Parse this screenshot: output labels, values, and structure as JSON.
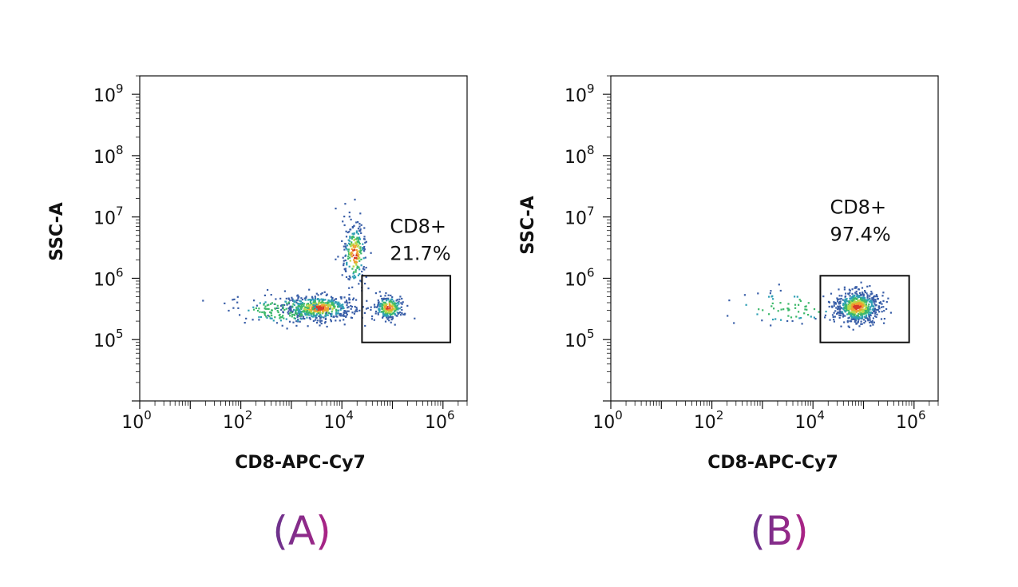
{
  "chart_data": [
    {
      "type": "scatter",
      "panel_label": "(A)",
      "xlabel": "CD8-APC-Cy7",
      "ylabel": "SSC-A",
      "x_scale": "log",
      "y_scale": "log",
      "xlim": [
        1,
        3000000
      ],
      "ylim": [
        10000,
        2000000000
      ],
      "x_ticks": [
        {
          "base": "10",
          "exp": "0"
        },
        {
          "base": "10",
          "exp": "2"
        },
        {
          "base": "10",
          "exp": "4"
        },
        {
          "base": "10",
          "exp": "6"
        }
      ],
      "y_ticks": [
        {
          "base": "10",
          "exp": "5"
        },
        {
          "base": "10",
          "exp": "6"
        },
        {
          "base": "10",
          "exp": "7"
        },
        {
          "base": "10",
          "exp": "8"
        },
        {
          "base": "10",
          "exp": "9"
        }
      ],
      "gate": {
        "name": "CD8+",
        "percent": "21.7%",
        "x_range": [
          25000,
          1400000
        ],
        "y_range": [
          90000,
          1100000
        ]
      },
      "populations": [
        {
          "center": [
            3500,
            330000
          ],
          "spread_log": [
            0.35,
            0.1
          ],
          "count": 520
        },
        {
          "center": [
            700,
            300000
          ],
          "spread_log": [
            0.55,
            0.12
          ],
          "count": 160
        },
        {
          "center": [
            18000,
            2500000
          ],
          "spread_log": [
            0.12,
            0.28
          ],
          "count": 230
        },
        {
          "center": [
            85000,
            330000
          ],
          "spread_log": [
            0.15,
            0.1
          ],
          "count": 240
        }
      ],
      "density_colors": [
        "#3a5fa8",
        "#2f9fb5",
        "#3cb86a",
        "#b8d84a",
        "#f0a030",
        "#d83a2a"
      ]
    },
    {
      "type": "scatter",
      "panel_label": "(B)",
      "xlabel": "CD8-APC-Cy7",
      "ylabel": "SSC-A",
      "x_scale": "log",
      "y_scale": "log",
      "xlim": [
        1,
        3000000
      ],
      "ylim": [
        10000,
        2000000000
      ],
      "x_ticks": [
        {
          "base": "10",
          "exp": "0"
        },
        {
          "base": "10",
          "exp": "2"
        },
        {
          "base": "10",
          "exp": "4"
        },
        {
          "base": "10",
          "exp": "6"
        }
      ],
      "y_ticks": [
        {
          "base": "10",
          "exp": "5"
        },
        {
          "base": "10",
          "exp": "6"
        },
        {
          "base": "10",
          "exp": "7"
        },
        {
          "base": "10",
          "exp": "8"
        },
        {
          "base": "10",
          "exp": "9"
        }
      ],
      "gate": {
        "name": "CD8+",
        "percent": "97.4%",
        "x_range": [
          14000,
          800000
        ],
        "y_range": [
          90000,
          1100000
        ]
      },
      "populations": [
        {
          "center": [
            75000,
            340000
          ],
          "spread_log": [
            0.22,
            0.13
          ],
          "count": 650
        },
        {
          "center": [
            3500,
            330000
          ],
          "spread_log": [
            0.6,
            0.14
          ],
          "count": 70
        }
      ],
      "density_colors": [
        "#3a5fa8",
        "#2f9fb5",
        "#3cb86a",
        "#b8d84a",
        "#f0a030",
        "#d83a2a"
      ]
    }
  ]
}
